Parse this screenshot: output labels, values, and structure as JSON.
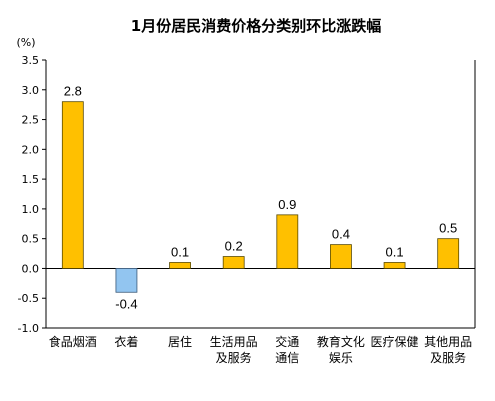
{
  "chart_data": {
    "type": "bar",
    "title": "1月份居民消费价格分类别环比涨跌幅",
    "unit_label": "(%)",
    "categories": [
      [
        "食品烟酒"
      ],
      [
        "衣着"
      ],
      [
        "居住"
      ],
      [
        "生活用品",
        "及服务"
      ],
      [
        "交通",
        "通信"
      ],
      [
        "教育文化",
        "娱乐"
      ],
      [
        "医疗保健"
      ],
      [
        "其他用品",
        "及服务"
      ]
    ],
    "values": [
      2.8,
      -0.4,
      0.1,
      0.2,
      0.9,
      0.4,
      0.1,
      0.5
    ],
    "value_labels": [
      "2.8",
      "-0.4",
      "0.1",
      "0.2",
      "0.9",
      "0.4",
      "0.1",
      "0.5"
    ],
    "ylim": [
      -1.0,
      3.5
    ],
    "yticks": [
      "-1.0",
      "-0.5",
      "0.0",
      "0.5",
      "1.0",
      "1.5",
      "2.0",
      "2.5",
      "3.0",
      "3.5"
    ],
    "grid": false,
    "legend": false,
    "colors": {
      "positive": "#FFC000",
      "negative": "#92C5F0",
      "bar_stroke": "#5a4a00",
      "negative_stroke": "#3a5a7a",
      "axis": "#000000"
    }
  }
}
